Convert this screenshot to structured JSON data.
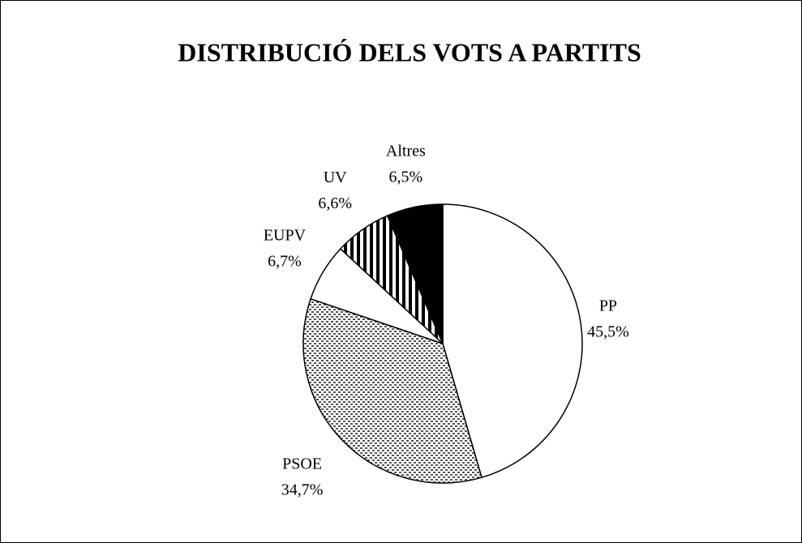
{
  "chart_data": {
    "type": "pie",
    "title": "DISTRIBUCIÓ DELS VOTS A PARTITS",
    "categories": [
      "PP",
      "PSOE",
      "EUPV",
      "UV",
      "Altres"
    ],
    "values": [
      45.5,
      34.7,
      6.7,
      6.6,
      6.5
    ],
    "value_labels": [
      "45,5%",
      "34,7%",
      "6,7%",
      "6,6%",
      "6,5%"
    ]
  }
}
